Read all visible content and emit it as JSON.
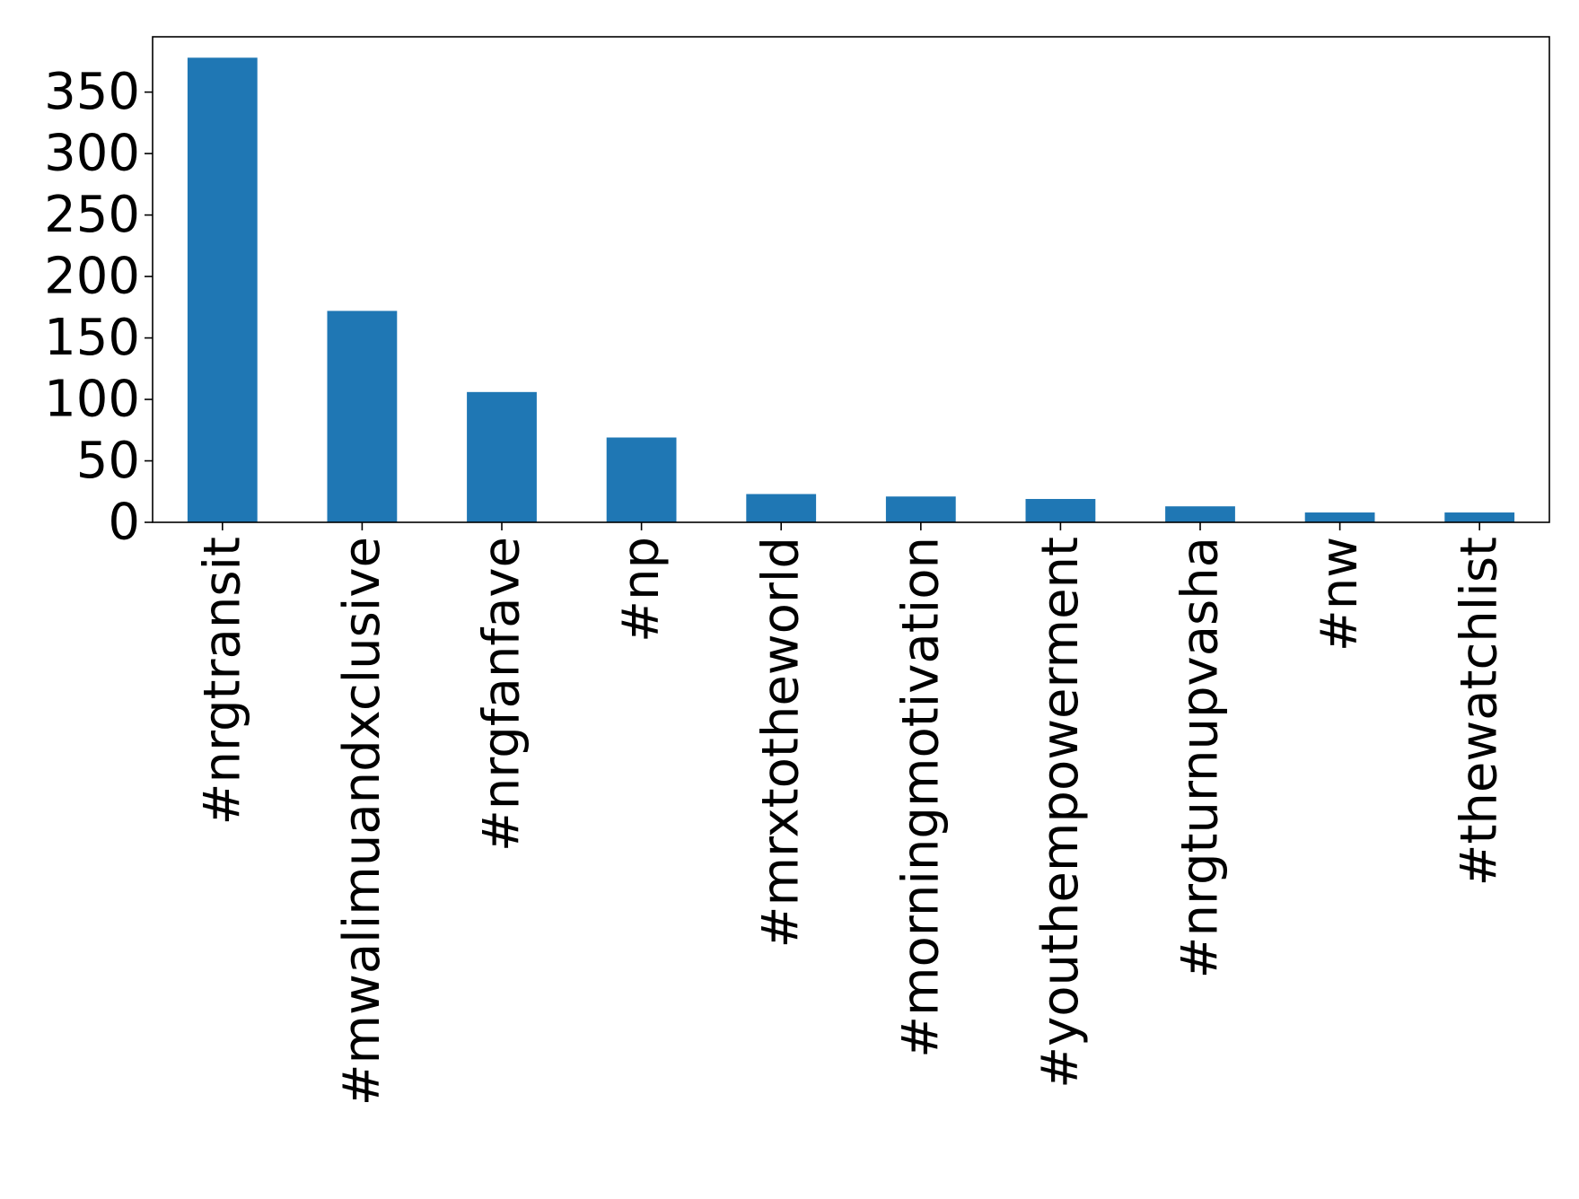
{
  "chart_data": {
    "type": "bar",
    "title": "",
    "xlabel": "",
    "ylabel": "",
    "categories": [
      "#nrgtransit",
      "#mwalimuandxclusive",
      "#nrgfanfave",
      "#np",
      "#mrxtotheworld",
      "#morningmotivation",
      "#youthempowerment",
      "#nrgturnupvasha",
      "#nw",
      "#thewatchlist"
    ],
    "values": [
      378,
      172,
      106,
      69,
      23,
      21,
      19,
      13,
      8,
      8
    ],
    "ylim": [
      0,
      395
    ],
    "yticks": [
      0,
      50,
      100,
      150,
      200,
      250,
      300,
      350
    ],
    "grid": false,
    "legend": "none",
    "colors": {
      "bar": "#1f77b4",
      "axis": "#000000",
      "background": "#ffffff"
    }
  }
}
